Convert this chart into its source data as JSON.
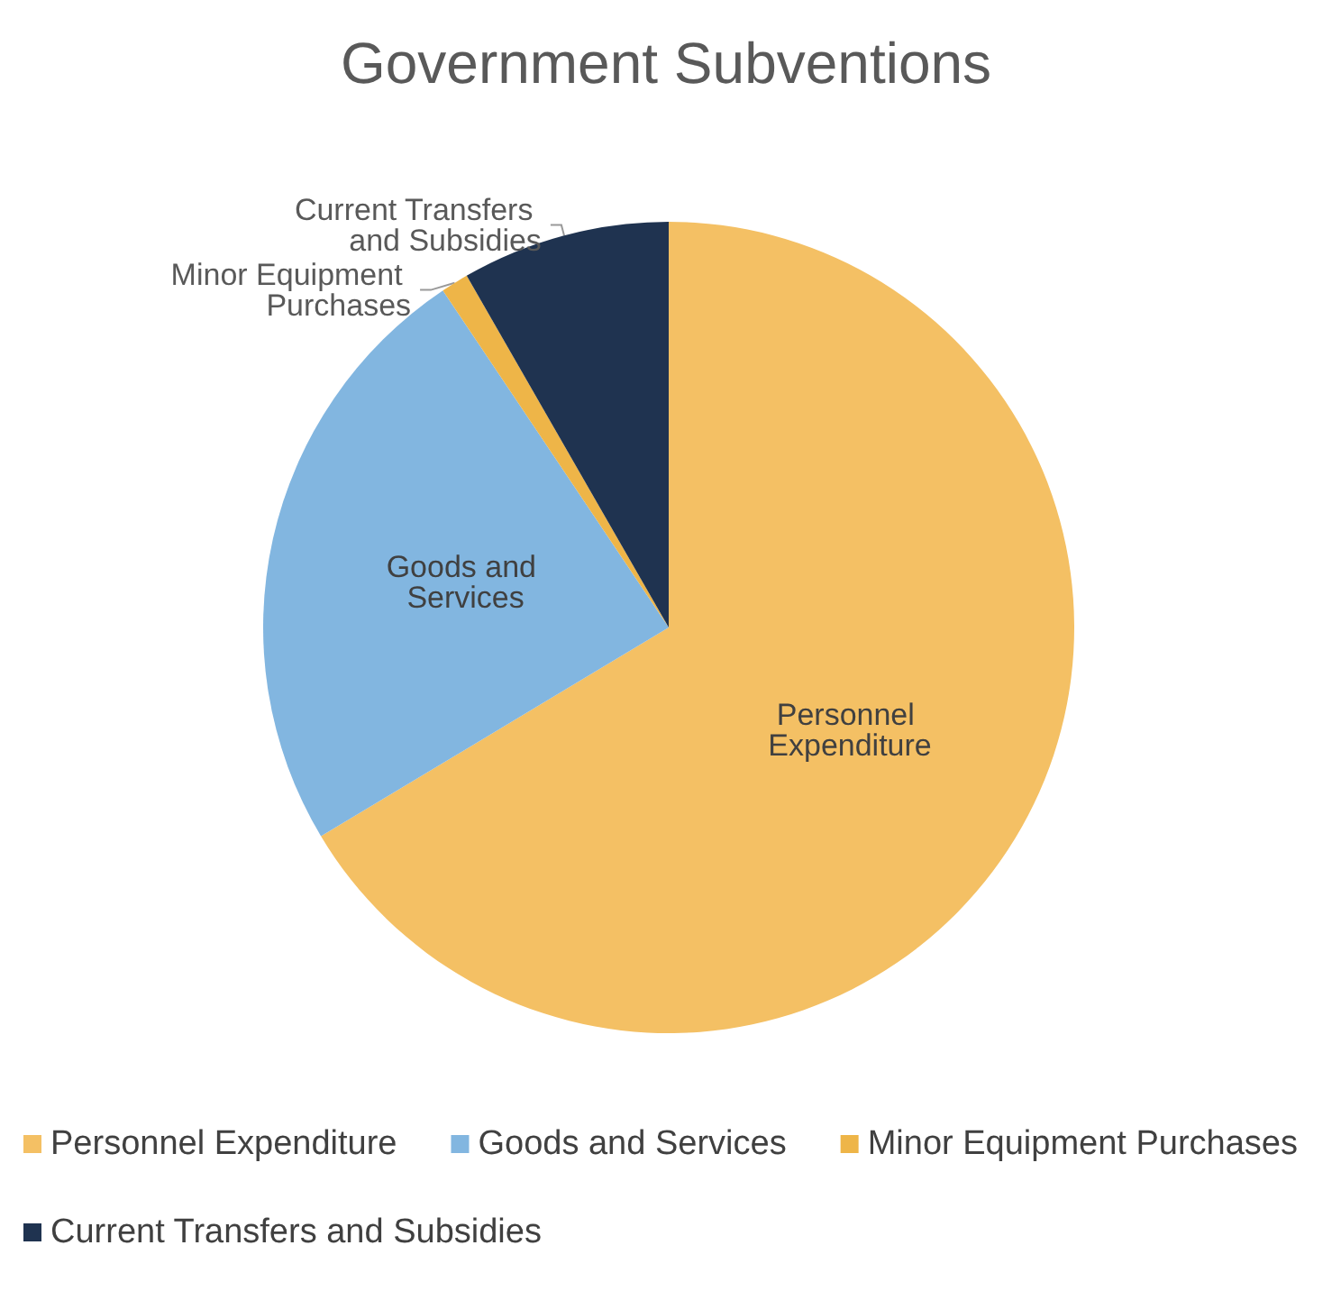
{
  "chart_data": {
    "type": "pie",
    "title": "Government Subventions",
    "categories": [
      "Personnel Expenditure",
      "Goods and Services",
      "Minor Equipment Purchases",
      "Current Transfers and Subsidies"
    ],
    "values": [
      66.4,
      24.2,
      1.1,
      8.3
    ],
    "colors": [
      "#f4c064",
      "#82b6e0",
      "#eeb548",
      "#1f3350"
    ],
    "legend": "bottom"
  }
}
